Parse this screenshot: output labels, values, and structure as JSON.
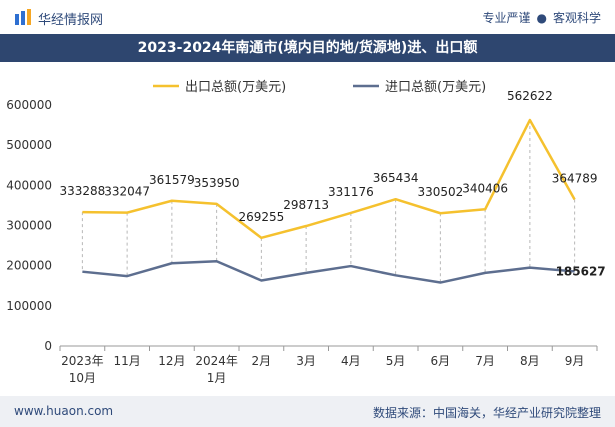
{
  "header": {
    "brand": "华经情报网",
    "tagline_left": "专业严谨",
    "tagline_right": "客观科学"
  },
  "footer": {
    "website": "www.huaon.com",
    "source": "数据来源：中国海关，华经产业研究院整理"
  },
  "colors": {
    "title_bar": "#2e466f",
    "export_line": "#f5c12e",
    "import_line": "#5d6e8f",
    "footer_bg": "#eef0f4"
  },
  "chart_data": {
    "type": "line",
    "title": "2023-2024年南通市(境内目的地/货源地)进、出口额",
    "categories": [
      [
        "2023年",
        "10月"
      ],
      [
        "11月"
      ],
      [
        "12月"
      ],
      [
        "2024年",
        "1月"
      ],
      [
        "2月"
      ],
      [
        "3月"
      ],
      [
        "4月"
      ],
      [
        "5月"
      ],
      [
        "6月"
      ],
      [
        "7月"
      ],
      [
        "8月"
      ],
      [
        "9月"
      ]
    ],
    "ylim": [
      0,
      600000
    ],
    "yticks": [
      0,
      100000,
      200000,
      300000,
      400000,
      500000,
      600000
    ],
    "grid": false,
    "legend_position": "top-center",
    "series": [
      {
        "name": "出口总额(万美元)",
        "color": "#f5c12e",
        "values": [
          333288,
          332047,
          361579,
          353950,
          269255,
          298713,
          331176,
          365434,
          330502,
          340406,
          562622,
          364789
        ],
        "labels_shown": true
      },
      {
        "name": "进口总额(万美元)",
        "color": "#5d6e8f",
        "values": [
          185000,
          174000,
          206000,
          211000,
          163000,
          182000,
          199000,
          176000,
          158000,
          182000,
          195000,
          185627
        ],
        "labels_shown": false,
        "last_label": "185627"
      }
    ]
  }
}
